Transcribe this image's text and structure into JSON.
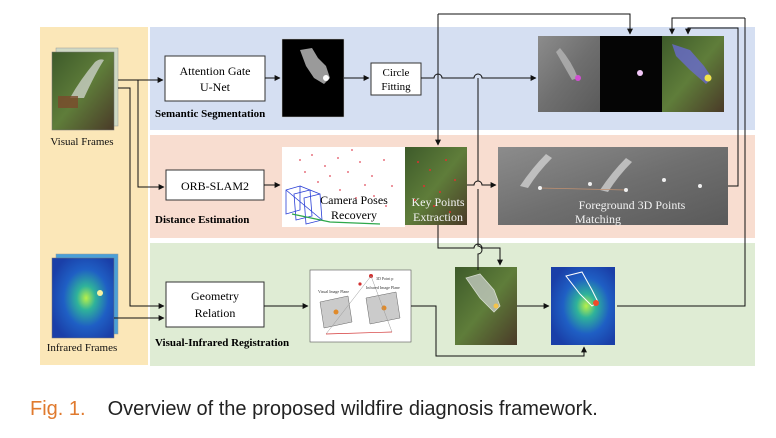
{
  "inputs": {
    "visual_label": "Visual Frames",
    "infrared_label": "Infrared  Frames"
  },
  "modules": {
    "segmentation": {
      "title": "Semantic Segmentation",
      "box_line1": "Attention Gate",
      "box_line2": "U-Net",
      "circle_line1": "Circle",
      "circle_line2": "Fitting"
    },
    "distance": {
      "title": "Distance Estimation",
      "box": "ORB-SLAM2",
      "poses_line1": "Camera Poses",
      "poses_line2": "Recovery",
      "keypoints_line1": "Key Points",
      "keypoints_line2": "Extraction",
      "matching_line1": "Foreground  3D Points",
      "matching_line2": "Matching"
    },
    "registration": {
      "title": "Visual-Infrared Registration",
      "box_line1": "Geometry",
      "box_line2": "Relation",
      "diag_visual_plane": "Visual Image Plane",
      "diag_infrared_plane": "Infrared Image Plane",
      "diag_point": "3D Point p"
    }
  },
  "caption": {
    "number": "Fig. 1.",
    "text": "Overview of the proposed wildfire diagnosis framework."
  },
  "colors": {
    "input_band": "#fbe7b8",
    "segmentation_band": "#d5dff2",
    "distance_band": "#f8ddd0",
    "registration_band": "#dfecd4",
    "caption_number": "#e07a2e"
  }
}
